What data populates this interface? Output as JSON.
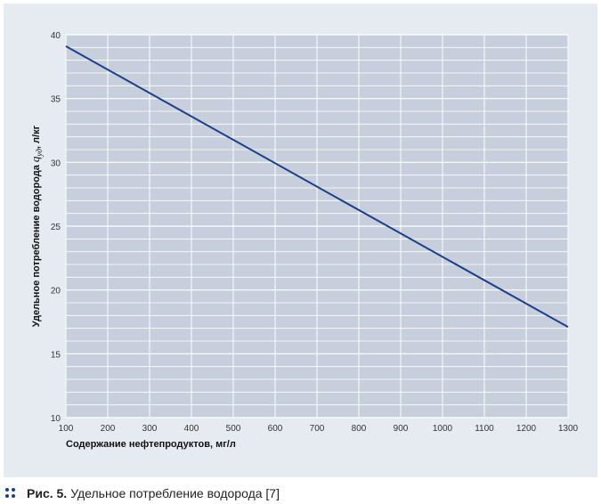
{
  "chart_data": {
    "type": "line",
    "x": [
      100,
      1300
    ],
    "series": [
      {
        "values": [
          39.1,
          17.1
        ],
        "color": "#1b3f8b"
      }
    ],
    "xlabel": "Содержание нефтепродуктов, мг/л",
    "ylabel_parts": {
      "before": "Удельное потребление водорода ",
      "symbol": "q",
      "subscript": "уд",
      "after": ", л/кг"
    },
    "xlim": [
      100,
      1300
    ],
    "ylim": [
      10,
      40
    ],
    "xticks": [
      100,
      200,
      300,
      400,
      500,
      600,
      700,
      800,
      900,
      1000,
      1100,
      1200,
      1300
    ],
    "yticks": [
      10,
      15,
      20,
      25,
      30,
      35,
      40
    ],
    "grid": true,
    "plot_background": "#c6cfdb",
    "grid_color": "#ffffff",
    "panel_background": "#e6ebf2"
  },
  "caption": {
    "figure_label": "Рис. 5.",
    "text": "Удельное потребление водорода [7]",
    "dots_color": "#1a3f8f"
  }
}
